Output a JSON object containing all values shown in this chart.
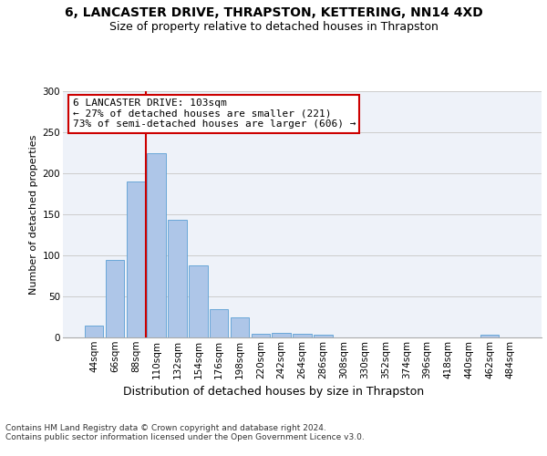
{
  "title": "6, LANCASTER DRIVE, THRAPSTON, KETTERING, NN14 4XD",
  "subtitle": "Size of property relative to detached houses in Thrapston",
  "xlabel": "Distribution of detached houses by size in Thrapston",
  "ylabel": "Number of detached properties",
  "bin_labels": [
    "44sqm",
    "66sqm",
    "88sqm",
    "110sqm",
    "132sqm",
    "154sqm",
    "176sqm",
    "198sqm",
    "220sqm",
    "242sqm",
    "264sqm",
    "286sqm",
    "308sqm",
    "330sqm",
    "352sqm",
    "374sqm",
    "396sqm",
    "418sqm",
    "440sqm",
    "462sqm",
    "484sqm"
  ],
  "bar_values": [
    15,
    95,
    190,
    225,
    143,
    88,
    35,
    24,
    4,
    6,
    4,
    3,
    0,
    0,
    0,
    0,
    0,
    0,
    0,
    3,
    0
  ],
  "bar_color": "#aec6e8",
  "bar_edge_color": "#5a9fd4",
  "vline_color": "#cc0000",
  "annotation_text": "6 LANCASTER DRIVE: 103sqm\n← 27% of detached houses are smaller (221)\n73% of semi-detached houses are larger (606) →",
  "annotation_box_color": "#ffffff",
  "annotation_box_edge": "#cc0000",
  "ylim": [
    0,
    300
  ],
  "yticks": [
    0,
    50,
    100,
    150,
    200,
    250,
    300
  ],
  "grid_color": "#cccccc",
  "bg_color": "#eef2f9",
  "footer_text": "Contains HM Land Registry data © Crown copyright and database right 2024.\nContains public sector information licensed under the Open Government Licence v3.0.",
  "title_fontsize": 10,
  "subtitle_fontsize": 9,
  "xlabel_fontsize": 9,
  "ylabel_fontsize": 8,
  "tick_fontsize": 7.5,
  "annotation_fontsize": 8,
  "footer_fontsize": 6.5
}
